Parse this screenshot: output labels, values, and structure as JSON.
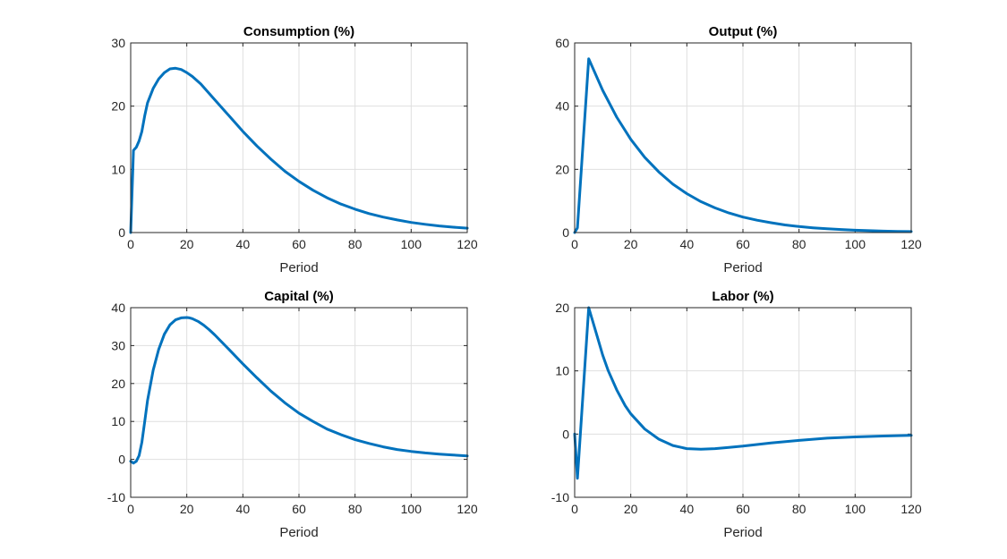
{
  "chart_data": [
    {
      "type": "line",
      "title": "Consumption (%)",
      "xlabel": "Period",
      "ylabel": "",
      "xlim": [
        0,
        120
      ],
      "ylim": [
        0,
        30
      ],
      "xticks": [
        "0",
        "20",
        "40",
        "60",
        "80",
        "100",
        "120"
      ],
      "yticks": [
        "0",
        "10",
        "20",
        "30"
      ],
      "grid": true,
      "color": "#0072BD",
      "x": [
        0,
        1,
        2,
        3,
        4,
        5,
        6,
        8,
        10,
        12,
        14,
        16,
        18,
        20,
        22,
        25,
        28,
        30,
        35,
        40,
        45,
        50,
        55,
        60,
        65,
        70,
        75,
        80,
        85,
        90,
        95,
        100,
        105,
        110,
        115,
        120
      ],
      "y": [
        0,
        13.0,
        13.5,
        14.5,
        16.0,
        18.5,
        20.5,
        22.8,
        24.3,
        25.3,
        25.9,
        26.0,
        25.8,
        25.3,
        24.7,
        23.5,
        22.0,
        21.0,
        18.5,
        16.0,
        13.7,
        11.6,
        9.7,
        8.1,
        6.7,
        5.5,
        4.5,
        3.7,
        3.0,
        2.45,
        2.0,
        1.6,
        1.3,
        1.05,
        0.85,
        0.7
      ]
    },
    {
      "type": "line",
      "title": "Output (%)",
      "xlabel": "Period",
      "ylabel": "",
      "xlim": [
        0,
        120
      ],
      "ylim": [
        0,
        60
      ],
      "xticks": [
        "0",
        "20",
        "40",
        "60",
        "80",
        "100",
        "120"
      ],
      "yticks": [
        "0",
        "20",
        "40",
        "60"
      ],
      "grid": true,
      "color": "#0072BD",
      "x": [
        0,
        1,
        5,
        10,
        15,
        20,
        25,
        30,
        35,
        40,
        45,
        50,
        55,
        60,
        65,
        70,
        75,
        80,
        85,
        90,
        95,
        100,
        105,
        110,
        115,
        120
      ],
      "y": [
        0,
        1.5,
        55,
        45,
        36.5,
        29.5,
        23.8,
        19.2,
        15.3,
        12.3,
        9.8,
        7.8,
        6.2,
        4.9,
        3.9,
        3.1,
        2.4,
        1.9,
        1.5,
        1.2,
        0.95,
        0.75,
        0.6,
        0.45,
        0.35,
        0.3
      ]
    },
    {
      "type": "line",
      "title": "Capital (%)",
      "xlabel": "Period",
      "ylabel": "",
      "xlim": [
        0,
        120
      ],
      "ylim": [
        -10,
        40
      ],
      "xticks": [
        "0",
        "20",
        "40",
        "60",
        "80",
        "100",
        "120"
      ],
      "yticks": [
        "-10",
        "0",
        "10",
        "20",
        "30",
        "40"
      ],
      "grid": true,
      "color": "#0072BD",
      "x": [
        0,
        1,
        2,
        3,
        4,
        5,
        6,
        8,
        10,
        12,
        14,
        16,
        18,
        20,
        21,
        22,
        24,
        26,
        28,
        30,
        35,
        40,
        45,
        50,
        55,
        60,
        65,
        70,
        75,
        80,
        85,
        90,
        95,
        100,
        105,
        110,
        115,
        120
      ],
      "y": [
        -0.5,
        -1.0,
        -0.5,
        1.0,
        4.5,
        10.0,
        15.5,
        23.5,
        29.0,
        33.0,
        35.5,
        36.8,
        37.3,
        37.4,
        37.3,
        37.1,
        36.4,
        35.4,
        34.2,
        32.8,
        29.0,
        25.2,
        21.5,
        18.0,
        14.9,
        12.2,
        10.0,
        8.0,
        6.5,
        5.2,
        4.2,
        3.3,
        2.6,
        2.1,
        1.7,
        1.4,
        1.15,
        0.9
      ]
    },
    {
      "type": "line",
      "title": "Labor (%)",
      "xlabel": "Period",
      "ylabel": "",
      "xlim": [
        0,
        120
      ],
      "ylim": [
        -10,
        20
      ],
      "xticks": [
        "0",
        "20",
        "40",
        "60",
        "80",
        "100",
        "120"
      ],
      "yticks": [
        "-10",
        "0",
        "10",
        "20"
      ],
      "grid": true,
      "color": "#0072BD",
      "x": [
        0,
        1,
        5,
        8,
        10,
        12,
        15,
        18,
        20,
        25,
        30,
        35,
        40,
        45,
        50,
        55,
        60,
        70,
        80,
        90,
        100,
        110,
        120
      ],
      "y": [
        0,
        -7,
        20,
        15.5,
        12.5,
        10.0,
        7.0,
        4.5,
        3.2,
        0.8,
        -0.8,
        -1.8,
        -2.3,
        -2.4,
        -2.3,
        -2.1,
        -1.9,
        -1.4,
        -1.0,
        -0.65,
        -0.45,
        -0.3,
        -0.2
      ]
    }
  ]
}
